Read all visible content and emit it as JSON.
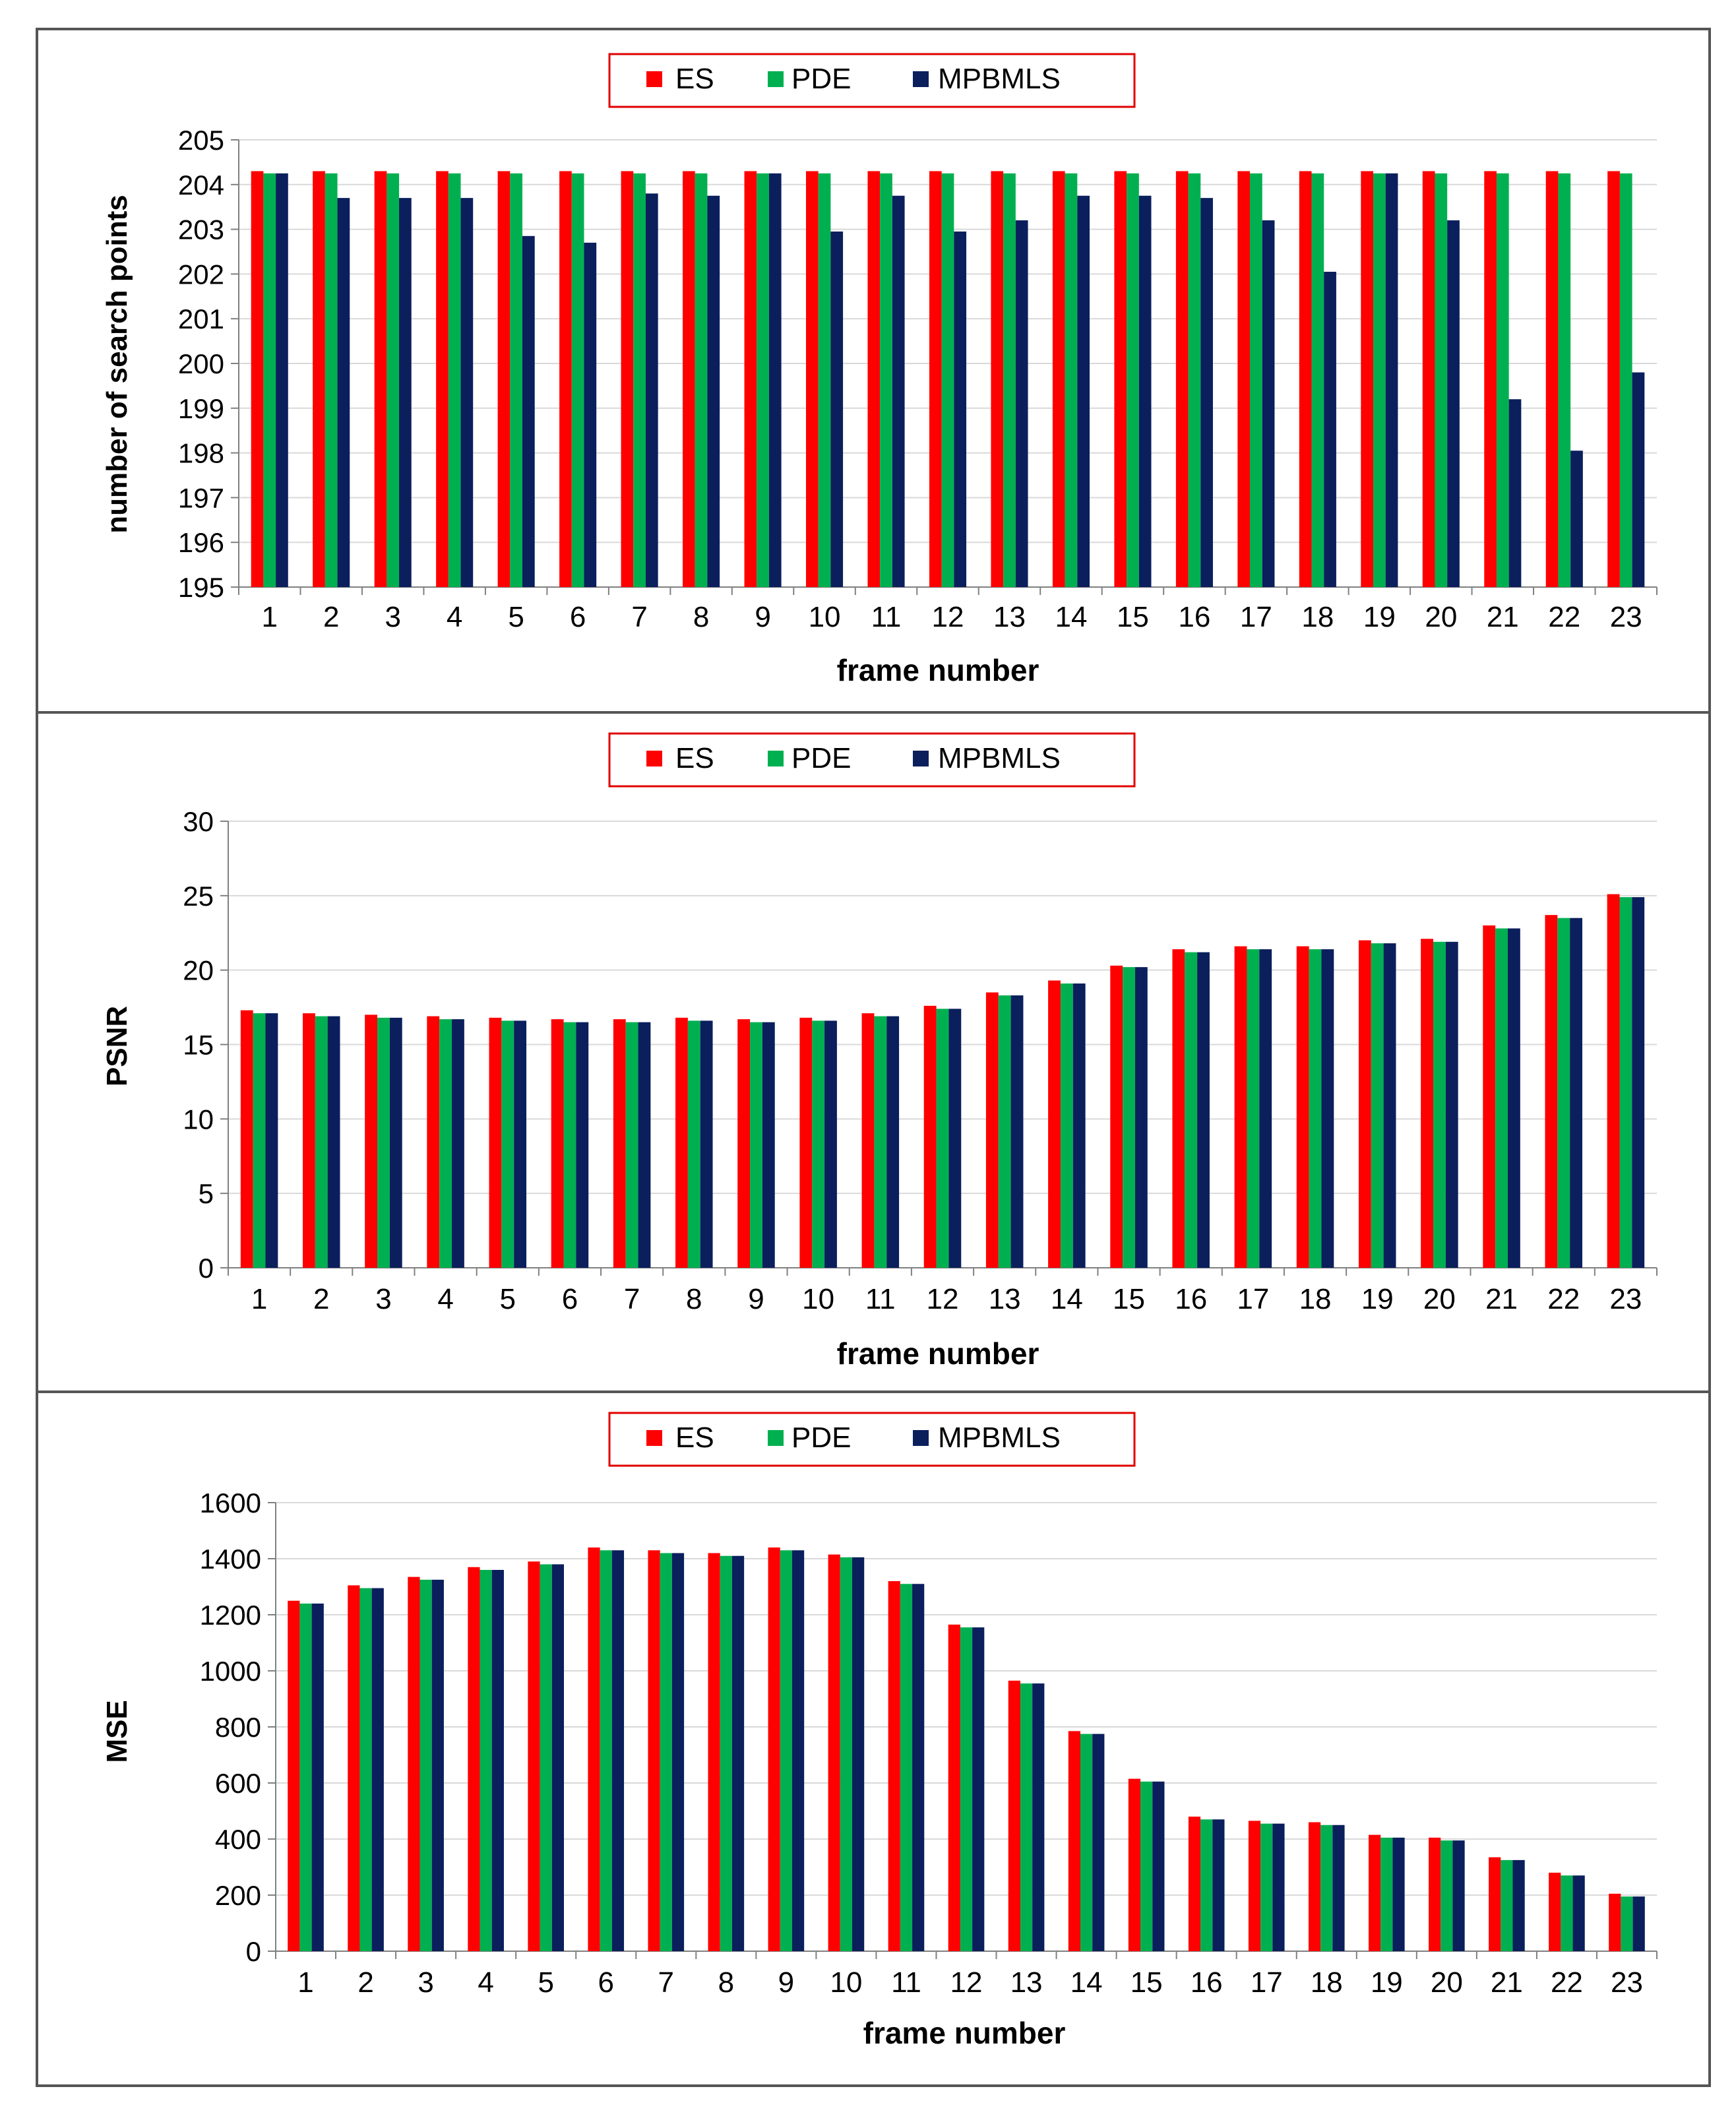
{
  "colors": {
    "ES": "#ff0000",
    "PDE": "#00b050",
    "MPBMLS": "#0a1f5c",
    "grid": "#d9d9d9",
    "axis": "#808080",
    "frame": "#555555"
  },
  "chart_data": [
    {
      "type": "bar",
      "title": "",
      "xlabel": "frame number",
      "ylabel": "number of search points",
      "ylim": [
        195,
        205
      ],
      "yticks": [
        195,
        196,
        197,
        198,
        199,
        200,
        201,
        202,
        203,
        204,
        205
      ],
      "grid": true,
      "legend_position": "top-center",
      "categories": [
        "1",
        "2",
        "3",
        "4",
        "5",
        "6",
        "7",
        "8",
        "9",
        "10",
        "11",
        "12",
        "13",
        "14",
        "15",
        "16",
        "17",
        "18",
        "19",
        "20",
        "21",
        "22",
        "23"
      ],
      "series": [
        {
          "name": "ES",
          "values": [
            204.3,
            204.3,
            204.3,
            204.3,
            204.3,
            204.3,
            204.3,
            204.3,
            204.3,
            204.3,
            204.3,
            204.3,
            204.3,
            204.3,
            204.3,
            204.3,
            204.3,
            204.3,
            204.3,
            204.3,
            204.3,
            204.3,
            204.3
          ]
        },
        {
          "name": "PDE",
          "values": [
            204.25,
            204.25,
            204.25,
            204.25,
            204.25,
            204.25,
            204.25,
            204.25,
            204.25,
            204.25,
            204.25,
            204.25,
            204.25,
            204.25,
            204.25,
            204.25,
            204.25,
            204.25,
            204.25,
            204.25,
            204.25,
            204.25,
            204.25
          ]
        },
        {
          "name": "MPBMLS",
          "values": [
            204.25,
            203.7,
            203.7,
            203.7,
            202.85,
            202.7,
            203.8,
            203.75,
            204.25,
            202.95,
            203.75,
            202.95,
            203.2,
            203.75,
            203.75,
            203.7,
            203.2,
            202.05,
            204.25,
            203.2,
            199.2,
            198.05,
            199.8
          ]
        }
      ]
    },
    {
      "type": "bar",
      "title": "",
      "xlabel": "frame number",
      "ylabel": "PSNR",
      "ylim": [
        0,
        30
      ],
      "yticks": [
        0,
        5,
        10,
        15,
        20,
        25,
        30
      ],
      "grid": true,
      "legend_position": "top-center",
      "categories": [
        "1",
        "2",
        "3",
        "4",
        "5",
        "6",
        "7",
        "8",
        "9",
        "10",
        "11",
        "12",
        "13",
        "14",
        "15",
        "16",
        "17",
        "18",
        "19",
        "20",
        "21",
        "22",
        "23"
      ],
      "series": [
        {
          "name": "ES",
          "values": [
            17.3,
            17.1,
            17.0,
            16.9,
            16.8,
            16.7,
            16.7,
            16.8,
            16.7,
            16.8,
            17.1,
            17.6,
            18.5,
            19.3,
            20.3,
            21.4,
            21.6,
            21.6,
            22.0,
            22.1,
            23.0,
            23.7,
            25.1
          ]
        },
        {
          "name": "PDE",
          "values": [
            17.1,
            16.9,
            16.8,
            16.7,
            16.6,
            16.5,
            16.5,
            16.6,
            16.5,
            16.6,
            16.9,
            17.4,
            18.3,
            19.1,
            20.2,
            21.2,
            21.4,
            21.4,
            21.8,
            21.9,
            22.8,
            23.5,
            24.9
          ]
        },
        {
          "name": "MPBMLS",
          "values": [
            17.1,
            16.9,
            16.8,
            16.7,
            16.6,
            16.5,
            16.5,
            16.6,
            16.5,
            16.6,
            16.9,
            17.4,
            18.3,
            19.1,
            20.2,
            21.2,
            21.4,
            21.4,
            21.8,
            21.9,
            22.8,
            23.5,
            24.9
          ]
        }
      ]
    },
    {
      "type": "bar",
      "title": "",
      "xlabel": "frame number",
      "ylabel": "MSE",
      "ylim": [
        0,
        1600
      ],
      "yticks": [
        0,
        200,
        400,
        600,
        800,
        1000,
        1200,
        1400,
        1600
      ],
      "grid": true,
      "legend_position": "top-center",
      "categories": [
        "1",
        "2",
        "3",
        "4",
        "5",
        "6",
        "7",
        "8",
        "9",
        "10",
        "11",
        "12",
        "13",
        "14",
        "15",
        "16",
        "17",
        "18",
        "19",
        "20",
        "21",
        "22",
        "23"
      ],
      "series": [
        {
          "name": "ES",
          "values": [
            1250,
            1305,
            1335,
            1370,
            1390,
            1440,
            1430,
            1420,
            1440,
            1415,
            1320,
            1165,
            965,
            785,
            615,
            480,
            465,
            460,
            415,
            405,
            335,
            280,
            205
          ]
        },
        {
          "name": "PDE",
          "values": [
            1240,
            1295,
            1325,
            1360,
            1380,
            1430,
            1420,
            1410,
            1430,
            1405,
            1310,
            1155,
            955,
            775,
            605,
            470,
            455,
            450,
            405,
            395,
            325,
            270,
            195
          ]
        },
        {
          "name": "MPBMLS",
          "values": [
            1240,
            1295,
            1325,
            1360,
            1380,
            1430,
            1420,
            1410,
            1430,
            1405,
            1310,
            1155,
            955,
            775,
            605,
            470,
            455,
            450,
            405,
            395,
            325,
            270,
            195
          ]
        }
      ]
    }
  ]
}
